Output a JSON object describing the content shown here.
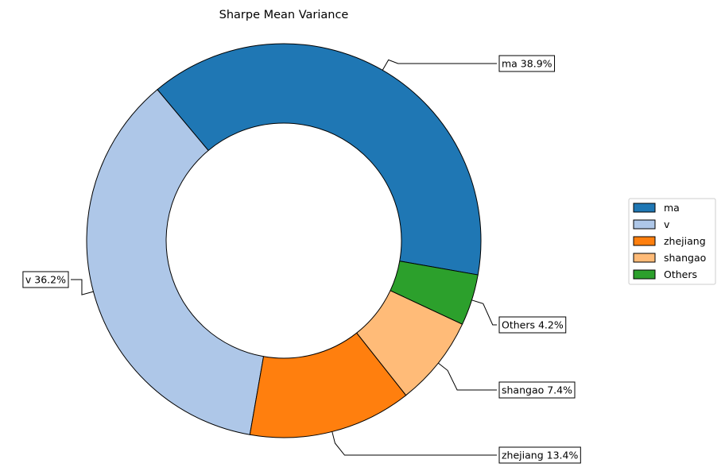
{
  "chart_data": {
    "type": "pie",
    "variant": "donut",
    "title": "Sharpe Mean Variance",
    "slices": [
      {
        "label": "ma",
        "value": 38.9,
        "display": "ma 38.9%",
        "color": "#1f77b4"
      },
      {
        "label": "v",
        "value": 36.2,
        "display": "v 36.2%",
        "color": "#aec7e8"
      },
      {
        "label": "zhejiang",
        "value": 13.4,
        "display": "zhejiang 13.4%",
        "color": "#ff7f0e"
      },
      {
        "label": "shangao",
        "value": 7.4,
        "display": "shangao 7.4%",
        "color": "#ffbb78"
      },
      {
        "label": "Others",
        "value": 4.2,
        "display": "Others 4.2%",
        "color": "#2ca02c"
      }
    ],
    "start_angle_deg": 350,
    "direction": "counterclockwise",
    "legend": {
      "position": "right",
      "entries": [
        "ma",
        "v",
        "zhejiang",
        "shangao",
        "Others"
      ]
    }
  }
}
